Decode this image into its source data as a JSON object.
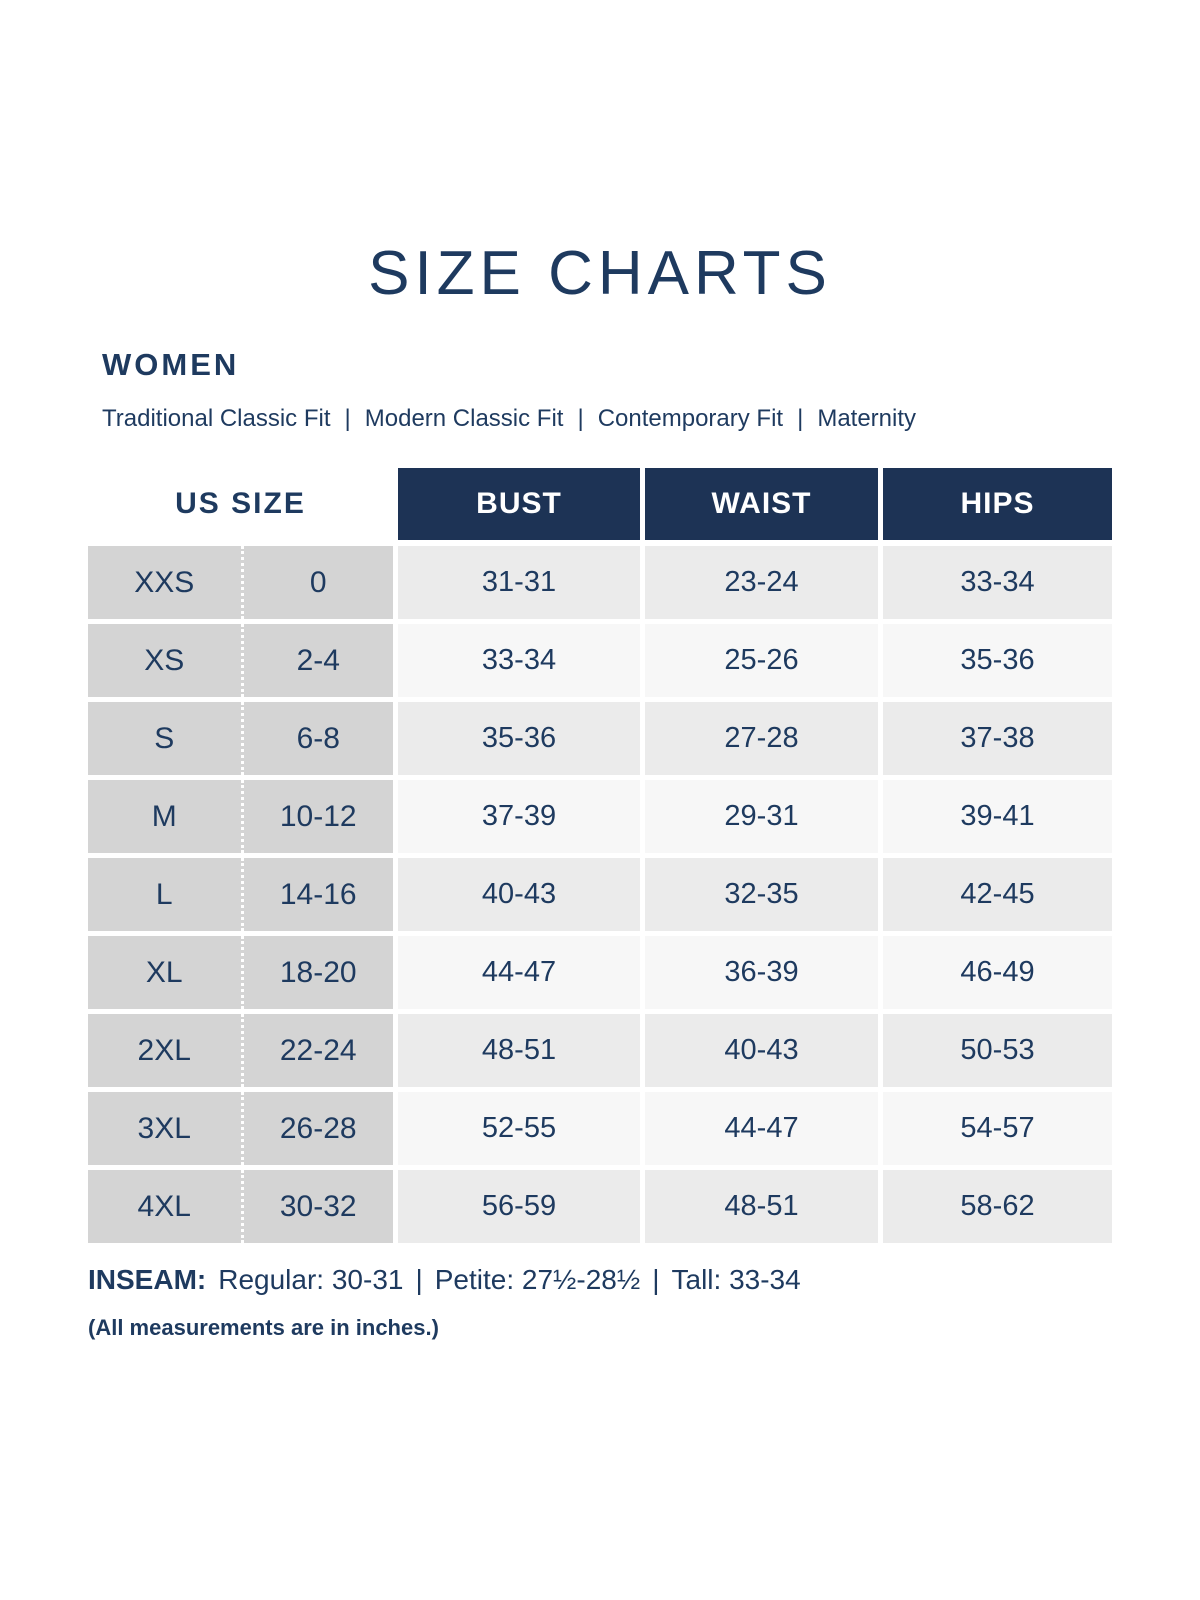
{
  "page": {
    "title": "SIZE CHARTS",
    "section": "WOMEN"
  },
  "fits": {
    "separator": "|",
    "items": [
      "Traditional Classic Fit",
      "Modern Classic Fit",
      "Contemporary Fit",
      "Maternity"
    ]
  },
  "table": {
    "size_header": "US SIZE",
    "measure_headers": [
      "BUST",
      "WAIST",
      "HIPS"
    ],
    "rows": [
      {
        "size": "XXS",
        "us": "0",
        "bust": "31-31",
        "waist": "23-24",
        "hips": "33-34"
      },
      {
        "size": "XS",
        "us": "2-4",
        "bust": "33-34",
        "waist": "25-26",
        "hips": "35-36"
      },
      {
        "size": "S",
        "us": "6-8",
        "bust": "35-36",
        "waist": "27-28",
        "hips": "37-38"
      },
      {
        "size": "M",
        "us": "10-12",
        "bust": "37-39",
        "waist": "29-31",
        "hips": "39-41"
      },
      {
        "size": "L",
        "us": "14-16",
        "bust": "40-43",
        "waist": "32-35",
        "hips": "42-45"
      },
      {
        "size": "XL",
        "us": "18-20",
        "bust": "44-47",
        "waist": "36-39",
        "hips": "46-49"
      },
      {
        "size": "2XL",
        "us": "22-24",
        "bust": "48-51",
        "waist": "40-43",
        "hips": "50-53"
      },
      {
        "size": "3XL",
        "us": "26-28",
        "bust": "52-55",
        "waist": "44-47",
        "hips": "54-57"
      },
      {
        "size": "4XL",
        "us": "30-32",
        "bust": "56-59",
        "waist": "48-51",
        "hips": "58-62"
      }
    ]
  },
  "inseam": {
    "label": "INSEAM:",
    "separator": "|",
    "items": [
      "Regular: 30-31",
      "Petite: 27½-28½",
      "Tall: 33-34"
    ]
  },
  "note": "(All measurements are in inches.)",
  "colors": {
    "navy_text": "#1e3a5f",
    "header_bg": "#1d3355",
    "size_col_bg": "#d4d4d4",
    "row_odd_bg": "#ebebeb",
    "row_even_bg": "#f7f7f7"
  }
}
